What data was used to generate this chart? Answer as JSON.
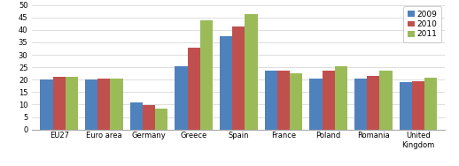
{
  "categories": [
    "EU27",
    "Euro area",
    "Germany",
    "Greece",
    "Spain",
    "France",
    "Poland",
    "Romania",
    "United\nKingdom"
  ],
  "series": {
    "2009": [
      20.0,
      20.0,
      11.0,
      25.5,
      37.5,
      23.8,
      20.5,
      20.5,
      19.0
    ],
    "2010": [
      21.0,
      20.5,
      9.8,
      32.8,
      41.5,
      23.5,
      23.5,
      21.5,
      19.5
    ],
    "2011": [
      21.2,
      20.5,
      8.5,
      44.0,
      46.5,
      22.5,
      25.5,
      23.5,
      20.8
    ]
  },
  "colors": {
    "2009": "#4F81BD",
    "2010": "#C0504D",
    "2011": "#9BBB59"
  },
  "ylim": [
    0,
    50
  ],
  "yticks": [
    0,
    5,
    10,
    15,
    20,
    25,
    30,
    35,
    40,
    45,
    50
  ],
  "legend_labels": [
    "2009",
    "2010",
    "2011"
  ],
  "bar_width": 0.28,
  "background_color": "#FFFFFF",
  "grid_color": "#D0D0D0",
  "figsize": [
    5.18,
    1.88
  ],
  "dpi": 100
}
